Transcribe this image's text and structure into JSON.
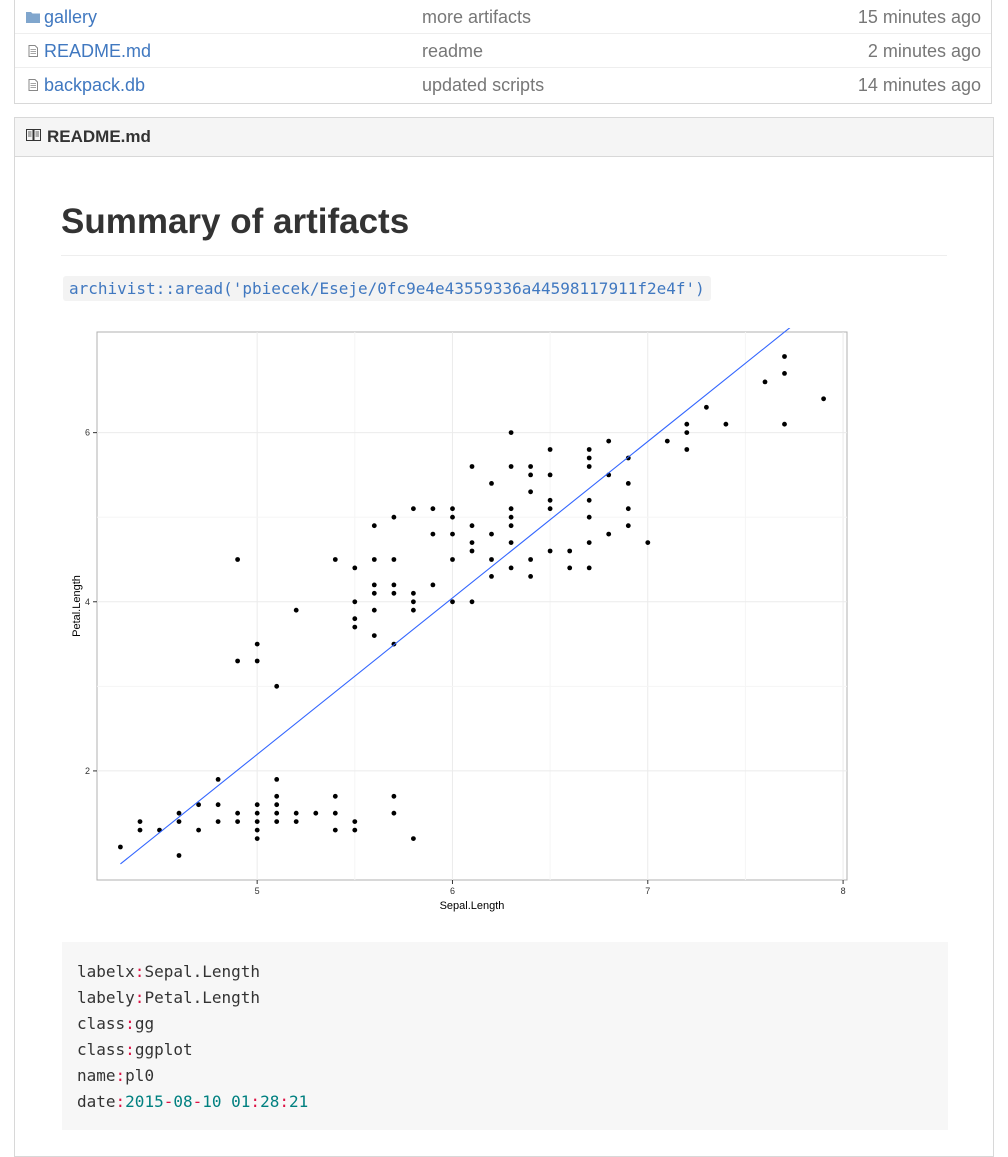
{
  "files": [
    {
      "name": "gallery",
      "type": "folder",
      "message": "more artifacts",
      "age": "15 minutes ago"
    },
    {
      "name": "README.md",
      "type": "file",
      "message": "readme",
      "age": "2 minutes ago"
    },
    {
      "name": "backpack.db",
      "type": "file",
      "message": "updated scripts",
      "age": "14 minutes ago"
    }
  ],
  "readme": {
    "title": "README.md",
    "heading": "Summary of artifacts",
    "code_inline": "archivist::aread('pbiecek/Eseje/0fc9e4e43559336a44598117911f2e4f')"
  },
  "meta": {
    "labelx_key": "labelx",
    "labelx_val": "Sepal.Length",
    "labely_key": "labely",
    "labely_val": "Petal.Length",
    "class1_key": "class",
    "class1_val": "gg",
    "class2_key": "class",
    "class2_val": "ggplot",
    "name_key": "name",
    "name_val": "pl0",
    "date_key": "date",
    "date_y": "2015",
    "date_m": "08",
    "date_d": "10",
    "date_h": "01",
    "date_min": "28",
    "date_s": "21"
  },
  "colors": {
    "link": "#4078c0",
    "line": "#3366ff",
    "folder": "#80a6cd"
  },
  "chart_data": {
    "type": "scatter",
    "xlabel": "Sepal.Length",
    "ylabel": "Petal.Length",
    "xlim": [
      4.18,
      8.02
    ],
    "ylim": [
      0.71,
      7.19
    ],
    "xticks": [
      5,
      6,
      7,
      8
    ],
    "yticks": [
      2,
      4,
      6
    ],
    "grid": true,
    "trend_line": {
      "x": [
        4.3,
        7.9
      ],
      "y": [
        0.9,
        7.56
      ]
    },
    "points": [
      [
        4.3,
        1.1
      ],
      [
        4.4,
        1.3
      ],
      [
        4.4,
        1.4
      ],
      [
        4.5,
        1.3
      ],
      [
        4.6,
        1.0
      ],
      [
        4.6,
        1.4
      ],
      [
        4.6,
        1.5
      ],
      [
        4.7,
        1.3
      ],
      [
        4.7,
        1.6
      ],
      [
        4.8,
        1.4
      ],
      [
        4.8,
        1.6
      ],
      [
        4.8,
        1.9
      ],
      [
        4.9,
        1.4
      ],
      [
        4.9,
        1.5
      ],
      [
        4.9,
        3.3
      ],
      [
        4.9,
        4.5
      ],
      [
        5.0,
        1.2
      ],
      [
        5.0,
        1.3
      ],
      [
        5.0,
        1.4
      ],
      [
        5.0,
        1.5
      ],
      [
        5.0,
        1.6
      ],
      [
        5.0,
        3.3
      ],
      [
        5.0,
        3.5
      ],
      [
        5.1,
        1.4
      ],
      [
        5.1,
        1.5
      ],
      [
        5.1,
        1.6
      ],
      [
        5.1,
        1.7
      ],
      [
        5.1,
        1.9
      ],
      [
        5.1,
        3.0
      ],
      [
        5.2,
        1.4
      ],
      [
        5.2,
        1.5
      ],
      [
        5.2,
        3.9
      ],
      [
        5.3,
        1.5
      ],
      [
        5.4,
        1.3
      ],
      [
        5.4,
        1.5
      ],
      [
        5.4,
        1.7
      ],
      [
        5.4,
        4.5
      ],
      [
        5.5,
        1.3
      ],
      [
        5.5,
        1.4
      ],
      [
        5.5,
        3.7
      ],
      [
        5.5,
        3.8
      ],
      [
        5.5,
        4.0
      ],
      [
        5.5,
        4.4
      ],
      [
        5.6,
        3.6
      ],
      [
        5.6,
        3.9
      ],
      [
        5.6,
        4.1
      ],
      [
        5.6,
        4.2
      ],
      [
        5.6,
        4.5
      ],
      [
        5.6,
        4.9
      ],
      [
        5.7,
        1.5
      ],
      [
        5.7,
        1.7
      ],
      [
        5.7,
        3.5
      ],
      [
        5.7,
        4.1
      ],
      [
        5.7,
        4.2
      ],
      [
        5.7,
        4.5
      ],
      [
        5.7,
        5.0
      ],
      [
        5.8,
        1.2
      ],
      [
        5.8,
        3.9
      ],
      [
        5.8,
        4.0
      ],
      [
        5.8,
        4.1
      ],
      [
        5.8,
        5.1
      ],
      [
        5.9,
        4.2
      ],
      [
        5.9,
        4.8
      ],
      [
        5.9,
        5.1
      ],
      [
        6.0,
        4.0
      ],
      [
        6.0,
        4.5
      ],
      [
        6.0,
        4.8
      ],
      [
        6.0,
        5.0
      ],
      [
        6.0,
        5.1
      ],
      [
        6.1,
        4.0
      ],
      [
        6.1,
        4.6
      ],
      [
        6.1,
        4.7
      ],
      [
        6.1,
        4.9
      ],
      [
        6.1,
        5.6
      ],
      [
        6.2,
        4.3
      ],
      [
        6.2,
        4.5
      ],
      [
        6.2,
        4.8
      ],
      [
        6.2,
        5.4
      ],
      [
        6.3,
        4.4
      ],
      [
        6.3,
        4.7
      ],
      [
        6.3,
        4.9
      ],
      [
        6.3,
        5.0
      ],
      [
        6.3,
        5.1
      ],
      [
        6.3,
        5.6
      ],
      [
        6.3,
        6.0
      ],
      [
        6.4,
        4.3
      ],
      [
        6.4,
        4.5
      ],
      [
        6.4,
        5.3
      ],
      [
        6.4,
        5.5
      ],
      [
        6.4,
        5.6
      ],
      [
        6.5,
        4.6
      ],
      [
        6.5,
        5.1
      ],
      [
        6.5,
        5.2
      ],
      [
        6.5,
        5.5
      ],
      [
        6.5,
        5.8
      ],
      [
        6.6,
        4.4
      ],
      [
        6.6,
        4.6
      ],
      [
        6.7,
        4.4
      ],
      [
        6.7,
        4.7
      ],
      [
        6.7,
        5.0
      ],
      [
        6.7,
        5.2
      ],
      [
        6.7,
        5.6
      ],
      [
        6.7,
        5.7
      ],
      [
        6.7,
        5.8
      ],
      [
        6.8,
        4.8
      ],
      [
        6.8,
        5.5
      ],
      [
        6.8,
        5.9
      ],
      [
        6.9,
        4.9
      ],
      [
        6.9,
        5.1
      ],
      [
        6.9,
        5.4
      ],
      [
        6.9,
        5.7
      ],
      [
        7.0,
        4.7
      ],
      [
        7.1,
        5.9
      ],
      [
        7.2,
        5.8
      ],
      [
        7.2,
        6.0
      ],
      [
        7.2,
        6.1
      ],
      [
        7.3,
        6.3
      ],
      [
        7.4,
        6.1
      ],
      [
        7.6,
        6.6
      ],
      [
        7.7,
        6.1
      ],
      [
        7.7,
        6.7
      ],
      [
        7.7,
        6.9
      ],
      [
        7.9,
        6.4
      ]
    ]
  }
}
